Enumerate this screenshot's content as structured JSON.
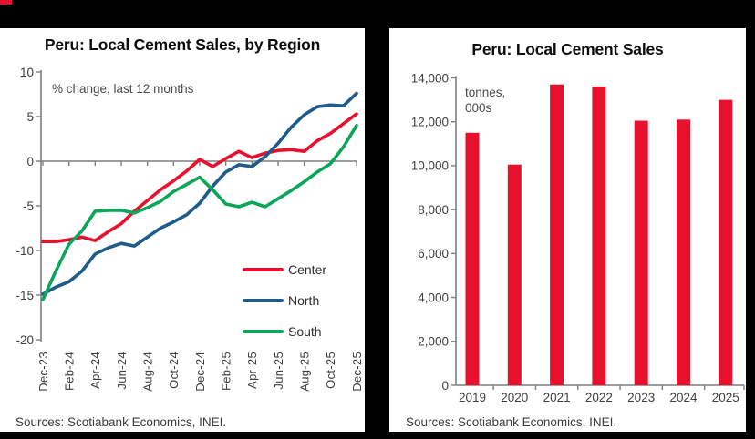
{
  "frame": {
    "background": "#000000",
    "logo_color": "#e8112d"
  },
  "colors": {
    "red": "#e8112d",
    "blue": "#1f5c8c",
    "green": "#0ca658",
    "axis": "#7f7f7f",
    "tick_text": "#404040"
  },
  "chart_data": [
    {
      "type": "line",
      "title": "Peru: Local Cement Sales, by Region",
      "annotation": "% change, last 12 months",
      "source": "Sources: Scotiabank Economics, INEI.",
      "x_categories": [
        "Dec-23",
        "Jan-24",
        "Feb-24",
        "Mar-24",
        "Apr-24",
        "May-24",
        "Jun-24",
        "Jul-24",
        "Aug-24",
        "Sep-24",
        "Oct-24",
        "Nov-24",
        "Dec-24",
        "Jan-25",
        "Feb-25",
        "Mar-25",
        "Apr-25",
        "May-25",
        "Jun-25",
        "Jul-25",
        "Aug-25",
        "Sep-25",
        "Oct-25",
        "Nov-25",
        "Dec-25"
      ],
      "x_tick_labels": [
        "Dec-23",
        "Feb-24",
        "Apr-24",
        "Jun-24",
        "Aug-24",
        "Oct-24",
        "Dec-24",
        "Feb-25",
        "Apr-25",
        "Jun-25",
        "Aug-25",
        "Oct-25",
        "Dec-25"
      ],
      "ylim": [
        -20,
        10
      ],
      "yticks": [
        10,
        5,
        0,
        -5,
        -10,
        -15,
        -20
      ],
      "grid": false,
      "legend_position": "lower-right",
      "series": [
        {
          "name": "Center",
          "color": "#e8112d",
          "values": [
            -9.0,
            -9.0,
            -8.8,
            -8.5,
            -8.9,
            -7.9,
            -7.0,
            -5.6,
            -4.4,
            -3.2,
            -2.2,
            -1.1,
            0.2,
            -0.6,
            0.3,
            1.1,
            0.4,
            0.9,
            1.2,
            1.3,
            1.1,
            2.3,
            3.1,
            4.2,
            5.3
          ]
        },
        {
          "name": "North",
          "color": "#1f5c8c",
          "values": [
            -14.9,
            -14.1,
            -13.5,
            -12.3,
            -10.4,
            -9.7,
            -9.2,
            -9.5,
            -8.5,
            -7.5,
            -6.8,
            -6.0,
            -4.7,
            -2.8,
            -1.2,
            -0.4,
            -0.6,
            0.5,
            2.0,
            3.8,
            5.2,
            6.1,
            6.3,
            6.2,
            7.6
          ]
        },
        {
          "name": "South",
          "color": "#0ca658",
          "values": [
            -15.5,
            -12.3,
            -9.3,
            -7.8,
            -5.6,
            -5.5,
            -5.5,
            -5.8,
            -5.2,
            -4.5,
            -3.4,
            -2.6,
            -1.8,
            -3.2,
            -4.8,
            -5.1,
            -4.6,
            -5.1,
            -4.2,
            -3.3,
            -2.3,
            -1.2,
            -0.3,
            1.6,
            4.0
          ]
        }
      ]
    },
    {
      "type": "bar",
      "title": "Peru: Local Cement Sales",
      "annotation": "tonnes,\n000s",
      "source": "Sources: Scotiabank Economics, INEI.",
      "categories": [
        "2019",
        "2020",
        "2021",
        "2022",
        "2023",
        "2024",
        "2025"
      ],
      "values": [
        11500,
        10050,
        13700,
        13600,
        12050,
        12100,
        13000
      ],
      "bar_color": "#e8112d",
      "ylim": [
        0,
        14000
      ],
      "ytick_values": [
        0,
        2000,
        4000,
        6000,
        8000,
        10000,
        12000,
        14000
      ],
      "ytick_labels": [
        "0",
        "2,000",
        "4,000",
        "6,000",
        "8,000",
        "10,000",
        "12,000",
        "14,000"
      ],
      "grid": false
    }
  ]
}
